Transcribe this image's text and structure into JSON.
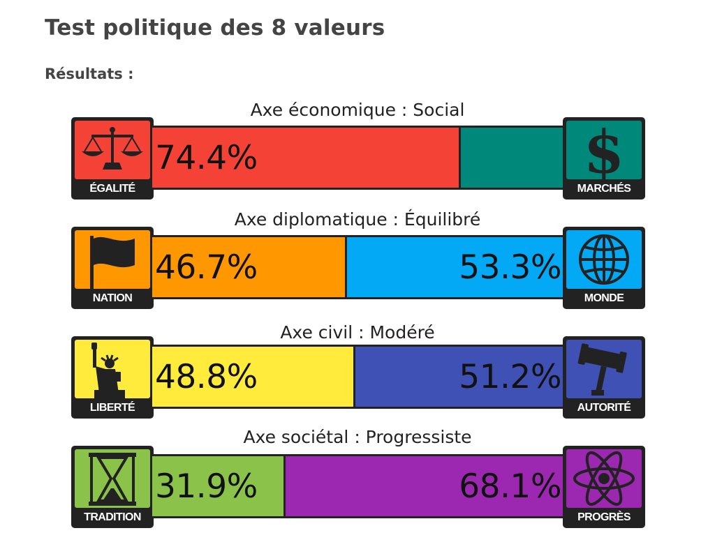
{
  "page": {
    "title": "Test politique des 8 valeurs",
    "results_label": "Résultats :"
  },
  "chart_data": {
    "type": "bar",
    "stacked": true,
    "orientation": "horizontal",
    "xlim": [
      0,
      100
    ],
    "axes": [
      {
        "title": "Axe économique : Social",
        "left": {
          "name": "ÉGALITÉ",
          "value": 74.4,
          "label": "74.4%",
          "color": "#f44336",
          "icon": "scales-icon"
        },
        "right": {
          "name": "MARCHÉS",
          "value": 25.6,
          "label": "",
          "color": "#00897b",
          "icon": "dollar-icon"
        }
      },
      {
        "title": "Axe diplomatique : Équilibré",
        "left": {
          "name": "NATION",
          "value": 46.7,
          "label": "46.7%",
          "color": "#ff9800",
          "icon": "flag-icon"
        },
        "right": {
          "name": "MONDE",
          "value": 53.3,
          "label": "53.3%",
          "color": "#03a9f4",
          "icon": "globe-icon"
        }
      },
      {
        "title": "Axe civil : Modéré",
        "left": {
          "name": "LIBERTÉ",
          "value": 48.8,
          "label": "48.8%",
          "color": "#ffeb3b",
          "icon": "statue-of-liberty-icon"
        },
        "right": {
          "name": "AUTORITÉ",
          "value": 51.2,
          "label": "51.2%",
          "color": "#3f51b5",
          "icon": "gavel-icon"
        }
      },
      {
        "title": "Axe sociétal : Progressiste",
        "left": {
          "name": "TRADITION",
          "value": 31.9,
          "label": "31.9%",
          "color": "#8bc34a",
          "icon": "hourglass-icon"
        },
        "right": {
          "name": "PROGRÈS",
          "value": 68.1,
          "label": "68.1%",
          "color": "#9c27b0",
          "icon": "atom-icon"
        }
      }
    ]
  }
}
